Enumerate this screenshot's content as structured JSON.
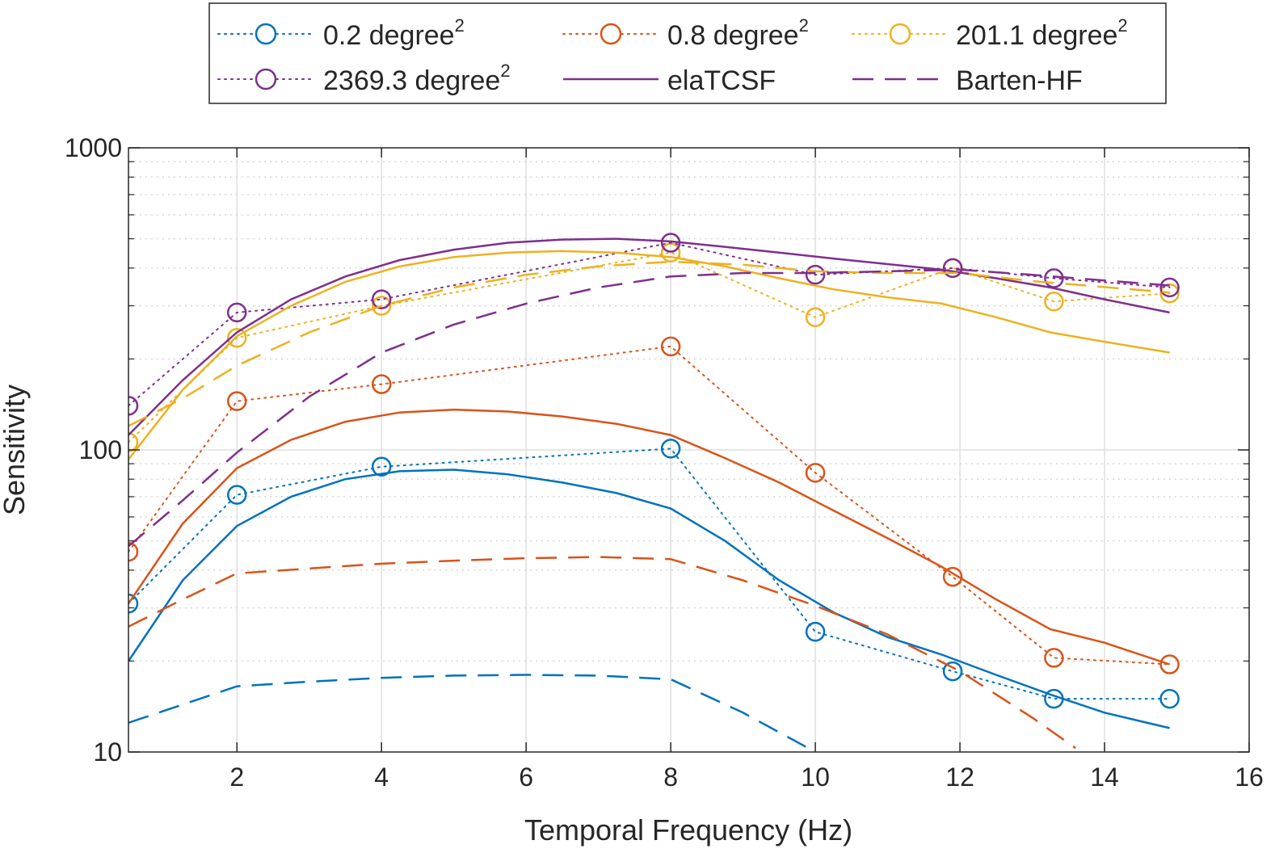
{
  "chart_data": {
    "type": "line",
    "title": "",
    "xlabel": "Temporal Frequency (Hz)",
    "ylabel": "Sensitivity",
    "xlim": [
      0.5,
      16
    ],
    "ylim": [
      10,
      1000
    ],
    "yscale": "log",
    "grid": true,
    "legend_position": "top",
    "x_ticks": [
      2,
      4,
      6,
      8,
      10,
      12,
      14,
      16
    ],
    "y_ticks": [
      10,
      100,
      1000
    ],
    "legend": [
      {
        "key": "meas_0_2",
        "text": "0.2 degree",
        "sup": "2"
      },
      {
        "key": "meas_0_8",
        "text": "0.8 degree",
        "sup": "2"
      },
      {
        "key": "meas_201_1",
        "text": "201.1 degree",
        "sup": "2"
      },
      {
        "key": "meas_2369_3",
        "text": "2369.3 degree",
        "sup": "2"
      },
      {
        "key": "elatcsf",
        "text": "elaTCSF",
        "sup": ""
      },
      {
        "key": "barten",
        "text": "Barten-HF",
        "sup": ""
      }
    ],
    "colors": {
      "s0_2": "#0072BD",
      "s0_8": "#D95319",
      "s201_1": "#EDB120",
      "s2369_3": "#7E2F8E",
      "legend_line": "#7E2F8E"
    },
    "series": [
      {
        "name": "0.2 degree² (measured)",
        "color": "#0072BD",
        "style": "dotted",
        "marker": "circle",
        "x": [
          0.5,
          2,
          4,
          8,
          10,
          11.9,
          13.3,
          14.9
        ],
        "y": [
          31,
          71,
          88,
          101,
          25,
          18.5,
          15,
          15
        ]
      },
      {
        "name": "0.8 degree² (measured)",
        "color": "#D95319",
        "style": "dotted",
        "marker": "circle",
        "x": [
          0.5,
          2,
          4,
          8,
          10,
          11.9,
          13.3,
          14.9
        ],
        "y": [
          46,
          145,
          165,
          220,
          84,
          38,
          20.5,
          19.5
        ]
      },
      {
        "name": "201.1 degree² (measured)",
        "color": "#EDB120",
        "style": "dotted",
        "marker": "circle",
        "x": [
          0.5,
          2,
          4,
          8,
          10,
          11.9,
          13.3,
          14.9
        ],
        "y": [
          106,
          235,
          300,
          450,
          275,
          400,
          310,
          330
        ]
      },
      {
        "name": "2369.3 degree² (measured)",
        "color": "#7E2F8E",
        "style": "dotted",
        "marker": "circle",
        "x": [
          0.5,
          2,
          4,
          8,
          10,
          11.9,
          13.3,
          14.9
        ],
        "y": [
          140,
          285,
          315,
          485,
          380,
          400,
          370,
          345
        ]
      },
      {
        "name": "0.2 degree² elaTCSF",
        "color": "#0072BD",
        "style": "solid",
        "x": [
          0.5,
          1.25,
          2,
          2.75,
          3.5,
          4.25,
          5,
          5.75,
          6.5,
          7.25,
          8,
          8.75,
          9.5,
          10.25,
          11,
          11.75,
          12.5,
          13.25,
          14,
          14.9
        ],
        "y": [
          20,
          37,
          56,
          70,
          80,
          85,
          86,
          83,
          78,
          72,
          64,
          50,
          37,
          29,
          24,
          21,
          18,
          15.5,
          13.5,
          12
        ]
      },
      {
        "name": "0.8 degree² elaTCSF",
        "color": "#D95319",
        "style": "solid",
        "x": [
          0.5,
          1.25,
          2,
          2.75,
          3.5,
          4.25,
          5,
          5.75,
          6.5,
          7.25,
          8,
          8.75,
          9.5,
          10.25,
          11,
          11.75,
          12.5,
          13.25,
          14,
          14.9
        ],
        "y": [
          31,
          57,
          87,
          108,
          124,
          133,
          136,
          134,
          129,
          122,
          112,
          94,
          78,
          63,
          51,
          41,
          32,
          25.5,
          23,
          19.5
        ]
      },
      {
        "name": "201.1 degree² elaTCSF",
        "color": "#EDB120",
        "style": "solid",
        "x": [
          0.5,
          1.25,
          2,
          2.75,
          3.5,
          4.25,
          5,
          5.75,
          6.5,
          7.25,
          8,
          8.75,
          9.5,
          10.25,
          11,
          11.75,
          12.5,
          13.25,
          14,
          14.9
        ],
        "y": [
          93,
          158,
          238,
          300,
          360,
          405,
          435,
          450,
          455,
          450,
          435,
          405,
          370,
          340,
          320,
          305,
          275,
          245,
          228,
          210
        ]
      },
      {
        "name": "2369.3 degree² elaTCSF",
        "color": "#7E2F8E",
        "style": "solid",
        "x": [
          0.5,
          1.25,
          2,
          2.75,
          3.5,
          4.25,
          5,
          5.75,
          6.5,
          7.25,
          8,
          8.75,
          9.5,
          10.25,
          11,
          11.75,
          12.5,
          13.25,
          14,
          14.9
        ],
        "y": [
          112,
          170,
          245,
          315,
          375,
          425,
          460,
          485,
          497,
          500,
          490,
          470,
          450,
          430,
          412,
          395,
          370,
          345,
          315,
          285
        ]
      },
      {
        "name": "0.2 degree² Barten-HF",
        "color": "#0072BD",
        "style": "dashed",
        "x": [
          0.5,
          2,
          3,
          4,
          5,
          6,
          7,
          8,
          9,
          10
        ],
        "y": [
          12.5,
          16.5,
          17.1,
          17.6,
          17.9,
          18,
          17.9,
          17.4,
          13.5,
          10
        ]
      },
      {
        "name": "0.8 degree² Barten-HF",
        "color": "#D95319",
        "style": "dashed",
        "x": [
          0.5,
          1.25,
          2,
          3,
          4,
          5,
          6,
          7,
          8,
          9,
          10,
          11,
          12,
          13,
          13.6
        ],
        "y": [
          26,
          32,
          39,
          40.5,
          42,
          43,
          43.8,
          44.2,
          43.5,
          37,
          30.5,
          24.5,
          18.5,
          13,
          10.3
        ]
      },
      {
        "name": "201.1 degree² Barten-HF",
        "color": "#EDB120",
        "style": "dashed",
        "x": [
          0.5,
          1.25,
          2,
          3,
          4,
          5,
          6,
          7,
          8,
          9,
          10,
          11,
          12,
          13,
          14.9
        ],
        "y": [
          120,
          148,
          190,
          245,
          300,
          345,
          380,
          405,
          420,
          410,
          390,
          385,
          385,
          362,
          332
        ]
      },
      {
        "name": "2369.3 degree² Barten-HF",
        "color": "#7E2F8E",
        "style": "dashed",
        "x": [
          0.5,
          1.25,
          2,
          3,
          4,
          5,
          6,
          7,
          8,
          9,
          10,
          11,
          12,
          13,
          14.9
        ],
        "y": [
          48,
          68,
          98,
          150,
          210,
          260,
          305,
          345,
          375,
          385,
          385,
          390,
          395,
          380,
          350
        ]
      }
    ]
  }
}
